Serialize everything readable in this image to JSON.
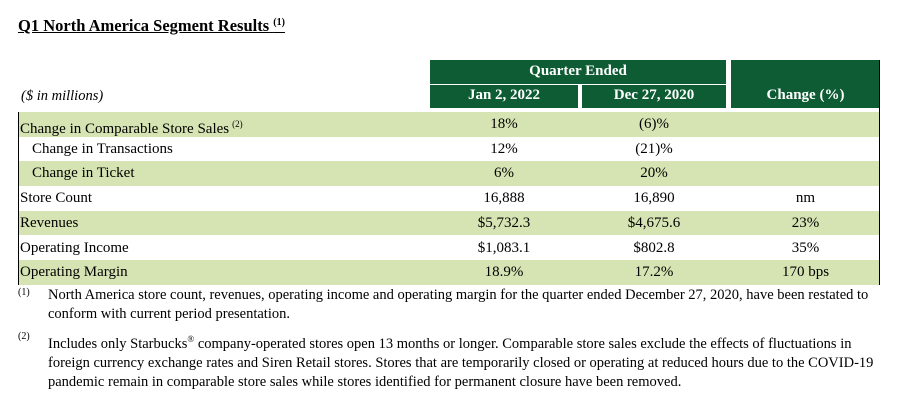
{
  "title": "Q1 North America Segment Results",
  "title_note": "(1)",
  "header": {
    "quarter_ended": "Quarter Ended",
    "col1": "Jan 2, 2022",
    "col2": "Dec 27, 2020",
    "col3": "Change (%)",
    "units": "($ in millions)"
  },
  "rows": [
    {
      "label": "Change in Comparable Store Sales",
      "note": "(2)",
      "v1": "18%",
      "v2": "(6)%",
      "v3": ""
    },
    {
      "label": "Change in Transactions",
      "v1": "12%",
      "v2": "(21)%",
      "v3": ""
    },
    {
      "label": "Change in Ticket",
      "v1": "6%",
      "v2": "20%",
      "v3": ""
    },
    {
      "label": "Store Count",
      "v1": "16,888",
      "v2": "16,890",
      "v3": "nm"
    },
    {
      "label": "Revenues",
      "v1": "$5,732.3",
      "v2": "$4,675.6",
      "v3": "23%"
    },
    {
      "label": "Operating Income",
      "v1": "$1,083.1",
      "v2": "$802.8",
      "v3": "35%"
    },
    {
      "label": "Operating Margin",
      "v1": "18.9%",
      "v2": "17.2%",
      "v3": "170 bps"
    }
  ],
  "footnotes": [
    {
      "mark": "(1)",
      "text": "North America store count, revenues, operating income and operating margin for the quarter ended December 27, 2020, have been restated to conform with current period presentation."
    },
    {
      "mark": "(2)",
      "text_before": "Includes only Starbucks",
      "sup": "®",
      "text_after": " company-operated stores open 13 months or longer. Comparable store sales exclude the effects of fluctuations in foreign currency exchange rates and Siren Retail stores. Stores that are temporarily closed or operating at reduced hours due to the COVID-19 pandemic remain in comparable store sales while stores identified for permanent closure have been removed."
    }
  ],
  "colors": {
    "header_green": "#0d5c33",
    "row_shade": "#d6e4b3"
  }
}
